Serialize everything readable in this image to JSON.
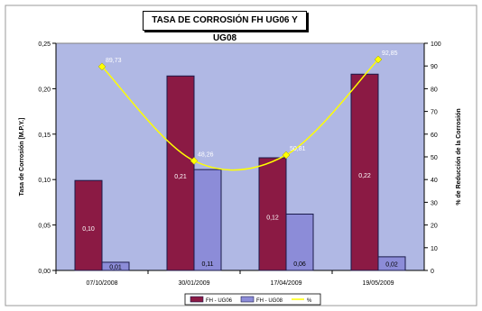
{
  "chart_data": {
    "type": "bar",
    "title": "TASA DE CORROSIÓN FH UG06 Y UG08",
    "xlabel": "",
    "ylabel": "Tasa de Corrosión [M.P.Y.]",
    "y2label": "% de Reducción de la Corrosión",
    "categories": [
      "07/10/2008",
      "30/01/2009",
      "17/04/2009",
      "19/05/2009"
    ],
    "ylim": [
      0,
      0.25
    ],
    "y2lim": [
      0,
      100
    ],
    "yticks": [
      "0,00",
      "0,05",
      "0,10",
      "0,15",
      "0,20",
      "0,25"
    ],
    "y2ticks": [
      "0",
      "10",
      "20",
      "30",
      "40",
      "50",
      "60",
      "70",
      "80",
      "90",
      "100"
    ],
    "series": [
      {
        "name": "FH - UG06",
        "axis": "left",
        "kind": "bar",
        "color": "#8b1a44",
        "values": [
          0.099,
          0.214,
          0.124,
          0.216
        ],
        "labels": [
          "0,10",
          "0,21",
          "0,12",
          "0,22"
        ]
      },
      {
        "name": "FH - UG08",
        "axis": "left",
        "kind": "bar",
        "color": "#8c8cd8",
        "values": [
          0.009,
          0.111,
          0.062,
          0.015
        ],
        "labels": [
          "0,01",
          "0,11",
          "0,06",
          "0,02"
        ]
      },
      {
        "name": "%",
        "axis": "right",
        "kind": "line",
        "color": "#ffff00",
        "values": [
          89.73,
          48.26,
          50.81,
          92.85
        ],
        "labels": [
          "89,73",
          "48,26",
          "50,81",
          "92,85"
        ]
      }
    ],
    "grid": false,
    "legend_position": "bottom"
  },
  "colors": {
    "plot_bg": "#b0b8e4",
    "outer_bg": "#ffffff"
  }
}
